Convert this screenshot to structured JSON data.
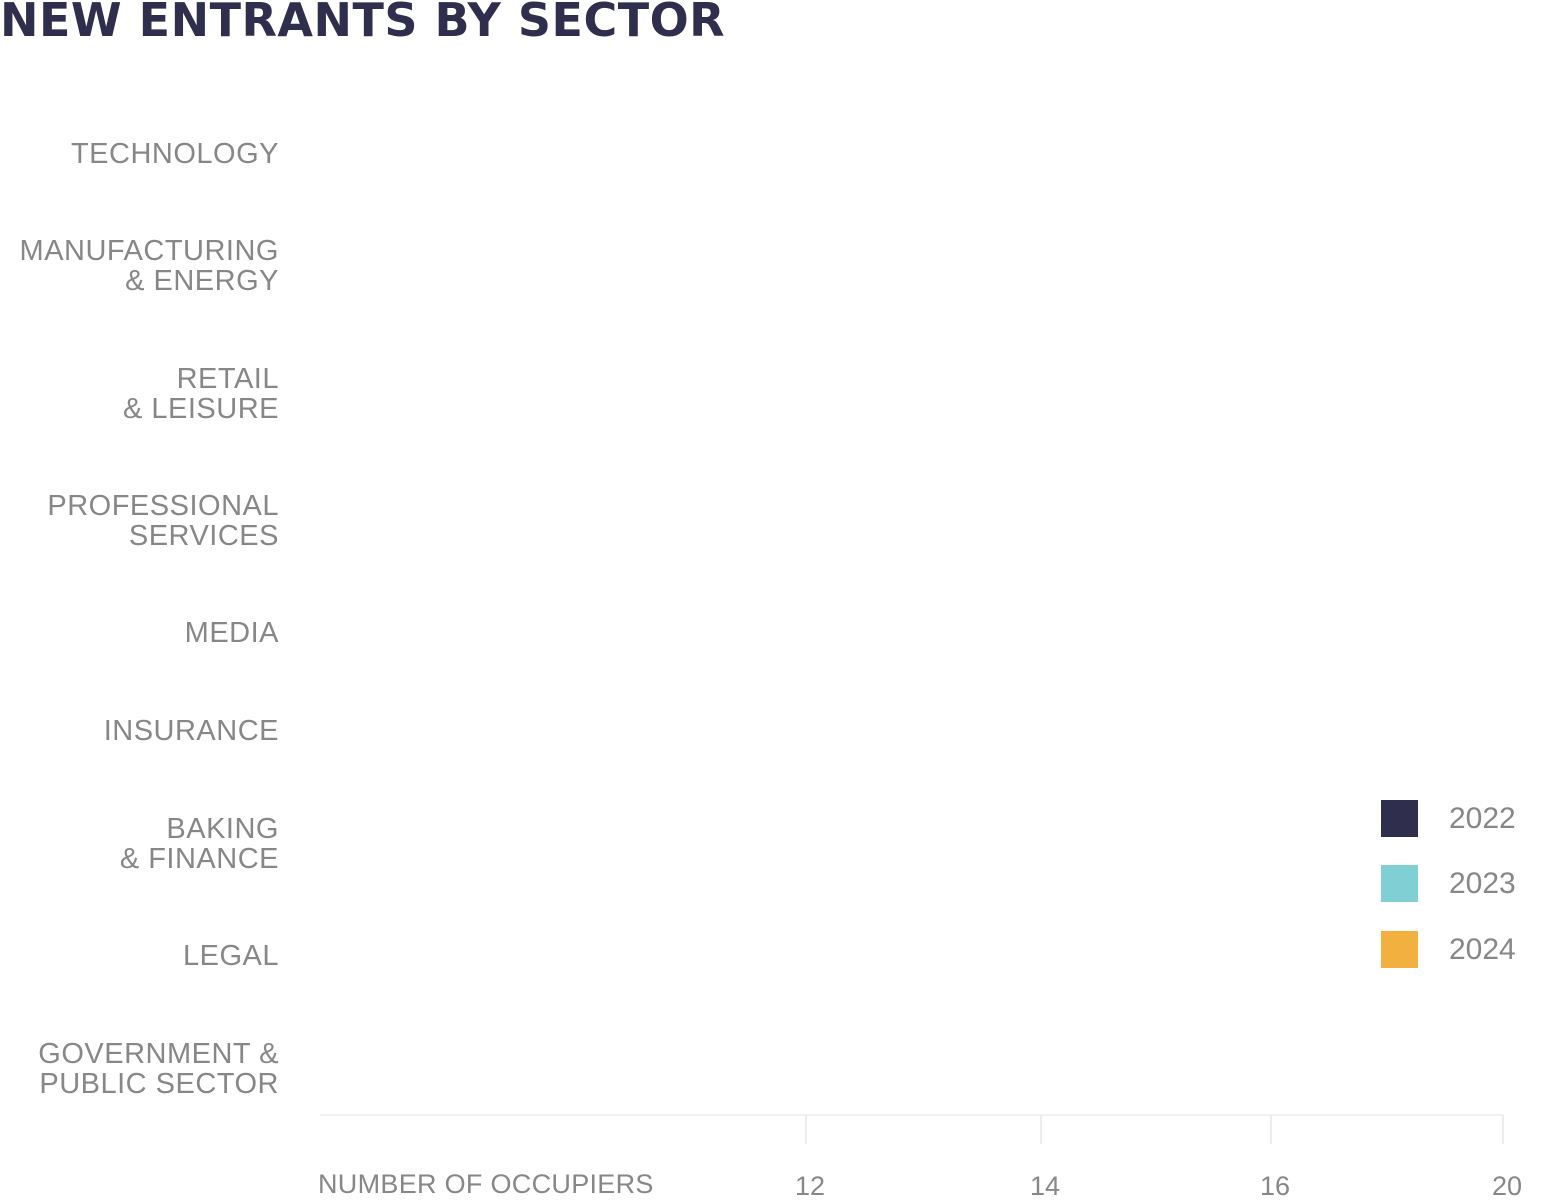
{
  "chart_data": {
    "type": "bar",
    "title": "NEW ENTRANTS BY SECTOR",
    "orientation": "horizontal",
    "categories": [
      "TECHNOLOGY",
      "MANUFACTURING\n& ENERGY",
      "RETAIL\n& LEISURE",
      "PROFESSIONAL\nSERVICES",
      "MEDIA",
      "INSURANCE",
      "BAKING\n& FINANCE",
      "LEGAL",
      "GOVERNMENT &\nPUBLIC SECTOR"
    ],
    "series": [
      {
        "name": "2022",
        "color": "#2f2e4c"
      },
      {
        "name": "2023",
        "color": "#7fcfd4"
      },
      {
        "name": "2024",
        "color": "#f2b03e"
      }
    ],
    "xlabel": "NUMBER OF OCCUPIERS",
    "x_ticks": [
      "12",
      "14",
      "16",
      "20"
    ],
    "legend_position": "right",
    "grid": false
  }
}
